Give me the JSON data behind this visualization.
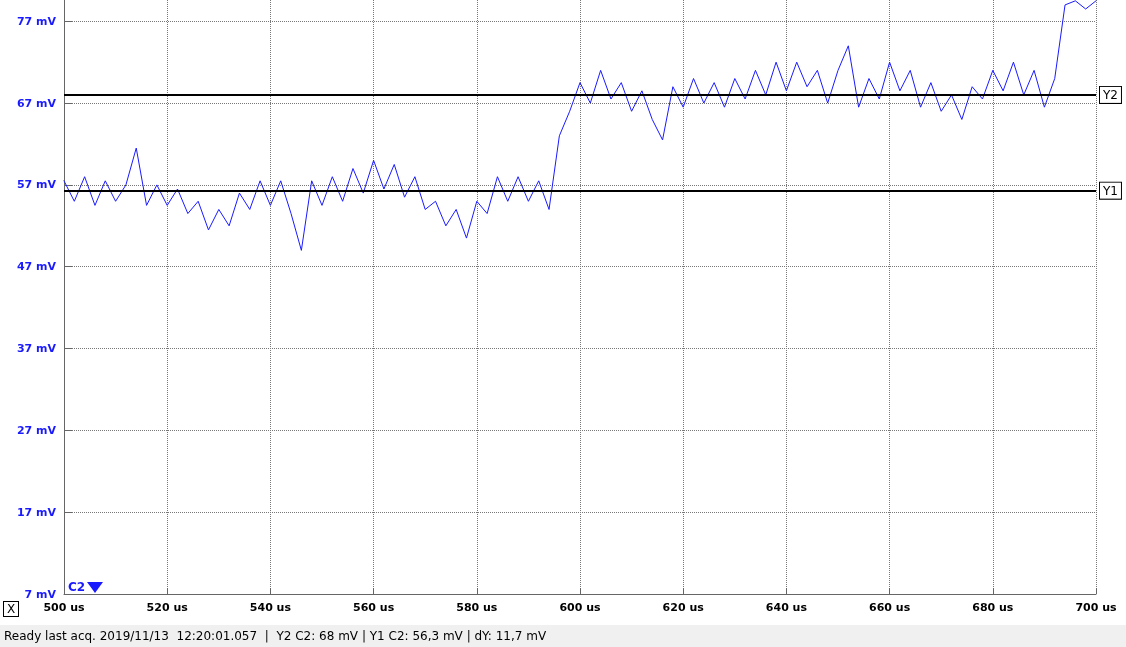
{
  "chart_data": {
    "type": "line",
    "x": [
      500,
      502,
      504,
      506,
      508,
      510,
      512,
      514,
      516,
      518,
      520,
      522,
      524,
      526,
      528,
      530,
      532,
      534,
      536,
      538,
      540,
      542,
      544,
      546,
      548,
      550,
      552,
      554,
      556,
      558,
      560,
      562,
      564,
      566,
      568,
      570,
      572,
      574,
      576,
      578,
      580,
      582,
      584,
      586,
      588,
      590,
      592,
      594,
      596,
      598,
      600,
      602,
      604,
      606,
      608,
      610,
      612,
      614,
      616,
      618,
      620,
      622,
      624,
      626,
      628,
      630,
      632,
      634,
      636,
      638,
      640,
      642,
      644,
      646,
      648,
      650,
      652,
      654,
      656,
      658,
      660,
      662,
      664,
      666,
      668,
      670,
      672,
      674,
      676,
      678,
      680,
      682,
      684,
      686,
      688,
      690,
      692,
      694,
      696,
      698,
      700
    ],
    "series": [
      {
        "name": "C2",
        "color": "#1a1aff",
        "values": [
          57.5,
          55,
          58,
          54.5,
          57.5,
          55,
          57,
          61.5,
          54.5,
          57,
          54.5,
          56.5,
          53.5,
          55,
          51.5,
          54,
          52,
          56,
          54,
          57.5,
          54.5,
          57.5,
          53.5,
          49,
          57.5,
          54.5,
          58,
          55,
          59,
          56,
          60,
          56.5,
          59.5,
          55.5,
          58,
          54,
          55,
          52,
          54,
          50.5,
          55,
          53.5,
          58,
          55,
          58,
          55,
          57.5,
          54,
          63,
          66,
          69.5,
          67,
          71,
          67.5,
          69.5,
          66,
          68.5,
          65,
          62.5,
          69,
          66.5,
          70,
          67,
          69.5,
          66.5,
          70,
          67.5,
          71,
          68,
          72,
          68.5,
          72,
          69,
          71,
          67,
          71,
          74,
          66.5,
          70,
          67.5,
          72,
          68.5,
          71,
          66.5,
          69.5,
          66,
          68,
          65,
          69,
          67.5,
          71,
          68.5,
          72,
          68,
          71,
          66.5,
          70,
          79,
          79.5,
          78.5,
          79.5
        ]
      }
    ],
    "xlim": [
      500,
      700
    ],
    "xticks": [
      {
        "value": 500,
        "label": "500 us"
      },
      {
        "value": 520,
        "label": "520 us"
      },
      {
        "value": 540,
        "label": "540 us"
      },
      {
        "value": 560,
        "label": "560 us"
      },
      {
        "value": 580,
        "label": "580 us"
      },
      {
        "value": 600,
        "label": "600 us"
      },
      {
        "value": 620,
        "label": "620 us"
      },
      {
        "value": 640,
        "label": "640 us"
      },
      {
        "value": 660,
        "label": "660 us"
      },
      {
        "value": 680,
        "label": "680 us"
      },
      {
        "value": 700,
        "label": "700 us"
      }
    ],
    "ylim": [
      7,
      79.6
    ],
    "yticks": [
      {
        "value": 7,
        "label": "7 mV"
      },
      {
        "value": 17,
        "label": "17 mV"
      },
      {
        "value": 27,
        "label": "27 mV"
      },
      {
        "value": 37,
        "label": "37 mV"
      },
      {
        "value": 47,
        "label": "47 mV"
      },
      {
        "value": 57,
        "label": "57 mV"
      },
      {
        "value": 67,
        "label": "67 mV"
      },
      {
        "value": 77,
        "label": "77 mV"
      }
    ],
    "grid": true,
    "legend": "bottom left",
    "marker": "none",
    "line_style": "solid",
    "ref_lines": [
      {
        "axis": "y",
        "value": 68,
        "label": "Y2",
        "color": "#000000"
      },
      {
        "axis": "y",
        "value": 56.3,
        "label": "Y1",
        "color": "#000000"
      }
    ],
    "annotations": [
      "X",
      "Ready last acq. 2019/11/13  12:20:01.057  |  Y2 C2: 68 mV | Y1 C2: 56,3 mV | dY: 11,7 mV"
    ]
  }
}
